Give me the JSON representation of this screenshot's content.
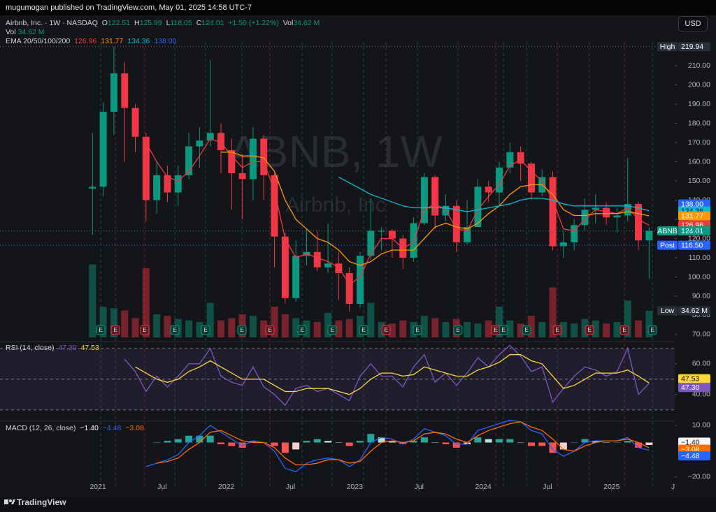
{
  "header": {
    "published": "mugumogan published on TradingView.com, May 01, 2025 14:58 UTC-7"
  },
  "legend": {
    "symbol": "Airbnb, Inc. · 1W · NASDAQ",
    "ohlc": [
      {
        "label": "O",
        "value": "122.51"
      },
      {
        "label": "H",
        "value": "125.99"
      },
      {
        "label": "L",
        "value": "118.05"
      },
      {
        "label": "C",
        "value": "124.01"
      }
    ],
    "change": "+1.50 (+1.22%)",
    "vol_label": "Vol",
    "vol_value": "34.62 M",
    "volume_row_label": "Vol",
    "volume_row_value": "34.62 M",
    "ema_label": "EMA 20/50/100/200",
    "ema_values": [
      "126.96",
      "131.77",
      "134.36",
      "138.00"
    ]
  },
  "currency": "USD",
  "watermark": {
    "symbol": "ABNB, 1W",
    "name": "Airbnb, Inc"
  },
  "event_marker": "E",
  "footer": "TradingView",
  "chart_data": {
    "type": "candlestick",
    "x": [
      "2020-12",
      "2021-01",
      "2021-02",
      "2021-03",
      "2021-04",
      "2021-05",
      "2021-06",
      "2021-07",
      "2021-08",
      "2021-09",
      "2021-10",
      "2021-11",
      "2021-12",
      "2022-01",
      "2022-02",
      "2022-03",
      "2022-04",
      "2022-05",
      "2022-06",
      "2022-07",
      "2022-08",
      "2022-09",
      "2022-10",
      "2022-11",
      "2022-12",
      "2023-01",
      "2023-02",
      "2023-03",
      "2023-04",
      "2023-05",
      "2023-06",
      "2023-07",
      "2023-08",
      "2023-09",
      "2023-10",
      "2023-11",
      "2023-12",
      "2024-01",
      "2024-02",
      "2024-03",
      "2024-04",
      "2024-05",
      "2024-06",
      "2024-07",
      "2024-08",
      "2024-09",
      "2024-10",
      "2024-11",
      "2024-12",
      "2025-01",
      "2025-02",
      "2025-03",
      "2025-04"
    ],
    "ohlc": [
      [
        146,
        175,
        122,
        147
      ],
      [
        147,
        191,
        142,
        186
      ],
      [
        186,
        219.94,
        174,
        206
      ],
      [
        206,
        212,
        160,
        188
      ],
      [
        188,
        190,
        165,
        173
      ],
      [
        173,
        175,
        129,
        140
      ],
      [
        140,
        160,
        133,
        153
      ],
      [
        153,
        158,
        139,
        144
      ],
      [
        144,
        158,
        137,
        153
      ],
      [
        153,
        175,
        151,
        168
      ],
      [
        168,
        178,
        157,
        171
      ],
      [
        171,
        213,
        168,
        175
      ],
      [
        175,
        180,
        154,
        166
      ],
      [
        166,
        172,
        135,
        154
      ],
      [
        154,
        164,
        130,
        151
      ],
      [
        151,
        178,
        140,
        172
      ],
      [
        172,
        174,
        140,
        153
      ],
      [
        153,
        154,
        105,
        121
      ],
      [
        121,
        123,
        86,
        89
      ],
      [
        89,
        119,
        87,
        111
      ],
      [
        111,
        125,
        106,
        113
      ],
      [
        113,
        124,
        103,
        105
      ],
      [
        105,
        128,
        102,
        107
      ],
      [
        107,
        113,
        88,
        102
      ],
      [
        102,
        105,
        82,
        86
      ],
      [
        86,
        113,
        84,
        111
      ],
      [
        111,
        141,
        109,
        124
      ],
      [
        124,
        126,
        114,
        124
      ],
      [
        124,
        125,
        110,
        120
      ],
      [
        120,
        122,
        104,
        110
      ],
      [
        110,
        131,
        108,
        128
      ],
      [
        128,
        154,
        127,
        152
      ],
      [
        152,
        153,
        125,
        132
      ],
      [
        132,
        143,
        129,
        137
      ],
      [
        137,
        140,
        113,
        118
      ],
      [
        118,
        140,
        117,
        126
      ],
      [
        126,
        151,
        126,
        147
      ],
      [
        147,
        150,
        139,
        144
      ],
      [
        144,
        160,
        137,
        157
      ],
      [
        157,
        170,
        154,
        165
      ],
      [
        165,
        168,
        150,
        159
      ],
      [
        159,
        160,
        140,
        144
      ],
      [
        144,
        156,
        142,
        152
      ],
      [
        152,
        155,
        114,
        116
      ],
      [
        116,
        124,
        110,
        118
      ],
      [
        118,
        130,
        114,
        127
      ],
      [
        127,
        141,
        124,
        135
      ],
      [
        135,
        143,
        128,
        136
      ],
      [
        136,
        139,
        127,
        131
      ],
      [
        131,
        136,
        123,
        132
      ],
      [
        132,
        162,
        129,
        138
      ],
      [
        138,
        139,
        114,
        119
      ],
      [
        119,
        126,
        99,
        124.01
      ]
    ],
    "up_color": "#089981",
    "down_color": "#f23645",
    "volume": [
      95,
      40,
      38,
      35,
      25,
      90,
      30,
      28,
      24,
      22,
      20,
      45,
      22,
      25,
      30,
      28,
      22,
      40,
      30,
      25,
      22,
      20,
      32,
      22,
      24,
      28,
      45,
      20,
      18,
      22,
      20,
      28,
      25,
      20,
      24,
      20,
      18,
      22,
      40,
      22,
      18,
      28,
      20,
      65,
      20,
      18,
      24,
      22,
      18,
      20,
      48,
      22,
      34.62
    ],
    "ema_series": [
      {
        "color": "#f23645",
        "values": [
          null,
          null,
          null,
          null,
          null,
          170,
          160,
          152,
          150,
          155,
          163,
          172,
          170,
          163,
          157,
          160,
          160,
          145,
          120,
          110,
          112,
          110,
          108,
          105,
          96,
          100,
          112,
          120,
          120,
          115,
          118,
          135,
          138,
          135,
          125,
          124,
          135,
          142,
          148,
          158,
          161,
          155,
          150,
          140,
          125,
          124,
          130,
          135,
          134,
          133,
          136,
          130,
          126.96
        ]
      },
      {
        "color": "#ff9800",
        "values": [
          null,
          null,
          null,
          null,
          null,
          null,
          null,
          null,
          null,
          null,
          null,
          null,
          165,
          165,
          163,
          163,
          162,
          155,
          140,
          130,
          125,
          120,
          118,
          114,
          108,
          106,
          108,
          112,
          114,
          114,
          114,
          120,
          126,
          128,
          126,
          125,
          128,
          133,
          137,
          143,
          147,
          148,
          148,
          143,
          135,
          132,
          132,
          133,
          133,
          133,
          134,
          133,
          131.77
        ]
      },
      {
        "color": "#00bcd4",
        "values": [
          null,
          null,
          null,
          null,
          null,
          null,
          null,
          null,
          null,
          null,
          null,
          null,
          null,
          null,
          null,
          null,
          null,
          null,
          null,
          null,
          null,
          null,
          null,
          152,
          149,
          146,
          143,
          141,
          139,
          137,
          136,
          136,
          136,
          136,
          135,
          134,
          135,
          136,
          137,
          138,
          140,
          141,
          141,
          140,
          138,
          137,
          137,
          137,
          137,
          137,
          137,
          136,
          134.36
        ]
      }
    ],
    "ylim": [
      67.8,
      222.4
    ],
    "yticks": [
      {
        "value": 70,
        "label": "70.00"
      },
      {
        "value": 80,
        "label": "80.00"
      },
      {
        "value": 90,
        "label": "90.00"
      },
      {
        "value": 100,
        "label": "100.00"
      },
      {
        "value": 110,
        "label": "110.00"
      },
      {
        "value": 120,
        "label": "120.00"
      },
      {
        "value": 130,
        "label": "130.00"
      },
      {
        "value": 140,
        "label": "140.00"
      },
      {
        "value": 150,
        "label": "150.00"
      },
      {
        "value": 160,
        "label": "160.00"
      },
      {
        "value": 170,
        "label": "170.00"
      },
      {
        "value": 180,
        "label": "180.00"
      },
      {
        "value": 190,
        "label": "190.00"
      },
      {
        "value": 200,
        "label": "200.00"
      },
      {
        "value": 210,
        "label": "210.00"
      }
    ],
    "xticks": [
      {
        "value": "2021-01",
        "label": "2021"
      },
      {
        "value": "2021-07",
        "label": "Jul"
      },
      {
        "value": "2022-01",
        "label": "2022"
      },
      {
        "value": "2022-07",
        "label": "Jul"
      },
      {
        "value": "2023-01",
        "label": "2023"
      },
      {
        "value": "2023-07",
        "label": "Jul"
      },
      {
        "value": "2024-01",
        "label": "2024"
      },
      {
        "value": "2024-07",
        "label": "Jul"
      },
      {
        "value": "2025-01",
        "label": "2025"
      },
      {
        "value": "2025-07",
        "label": "Jul"
      }
    ],
    "price_tags": [
      {
        "title": "High",
        "value": 219.94,
        "label": "219.94",
        "color": "#2a2e39"
      },
      {
        "value": 138,
        "label": "138.00",
        "color": "#2962ff"
      },
      {
        "value": 134.36,
        "label": "134.36",
        "color": "#00bcd4"
      },
      {
        "value": 131.77,
        "label": "131.77",
        "color": "#ff9800"
      },
      {
        "value": 126.96,
        "label": "126.96",
        "color": "#f23645"
      },
      {
        "title": "ABNB",
        "value": 124.01,
        "label": "124.01",
        "color": "#089981"
      },
      {
        "title": "Post",
        "value": 116.5,
        "label": "116.50",
        "color": "#2962ff"
      }
    ],
    "volume_tag": {
      "title": "Low",
      "value": 34.62,
      "label": "34.62 M",
      "color": "#2a2e39"
    },
    "rsi": {
      "title": "RSI (14, close)",
      "legend": [
        "47.30",
        "47.53"
      ],
      "values": [
        null,
        null,
        null,
        63,
        55,
        42,
        52,
        45,
        52,
        60,
        60,
        70,
        52,
        48,
        46,
        58,
        45,
        40,
        33,
        44,
        46,
        42,
        44,
        40,
        36,
        52,
        60,
        52,
        52,
        45,
        58,
        66,
        48,
        54,
        46,
        54,
        64,
        58,
        66,
        72,
        65,
        55,
        58,
        35,
        44,
        52,
        58,
        56,
        52,
        55,
        70,
        40,
        47.3
      ],
      "ma": [
        null,
        null,
        null,
        null,
        58,
        54,
        50,
        48,
        50,
        55,
        58,
        62,
        58,
        54,
        50,
        50,
        50,
        46,
        42,
        42,
        44,
        44,
        44,
        42,
        40,
        44,
        50,
        54,
        54,
        52,
        53,
        58,
        56,
        54,
        52,
        52,
        56,
        58,
        61,
        66,
        66,
        62,
        60,
        52,
        44,
        46,
        50,
        54,
        54,
        54,
        56,
        52,
        47.53
      ],
      "color": "#7e57c2",
      "ma_color": "#fdd835",
      "ylim": [
        24,
        72.7
      ],
      "levels": [
        70,
        50,
        30
      ],
      "yticks": [
        {
          "value": 60,
          "label": "60.00"
        },
        {
          "value": 40,
          "label": "40.00"
        }
      ],
      "tags": [
        {
          "value": 47.53,
          "label": "47.53",
          "color": "#fdd835"
        },
        {
          "value": 47.3,
          "label": "47.30",
          "color": "#7e57c2"
        }
      ]
    },
    "macd": {
      "title": "MACD (12, 26, close)",
      "legend": [
        "−1.40",
        "−4.48",
        "−3.08"
      ],
      "macd": [
        null,
        null,
        null,
        null,
        null,
        -14,
        -12,
        -10,
        -7,
        0,
        4,
        10,
        6,
        2,
        -2,
        1,
        0,
        -5,
        -15,
        -17,
        -12,
        -10,
        -9,
        -10,
        -14,
        -10,
        0,
        3,
        2,
        -1,
        2,
        8,
        6,
        4,
        -1,
        -1,
        7,
        9,
        11,
        13,
        12,
        7,
        5,
        -4,
        -8,
        -5,
        0,
        1,
        1,
        1,
        3,
        -3,
        -4.48
      ],
      "signal": [
        null,
        null,
        null,
        null,
        null,
        null,
        -12,
        -11,
        -9,
        -4,
        0,
        6,
        7,
        4,
        1,
        0,
        0,
        -3,
        -9,
        -13,
        -13,
        -12,
        -10,
        -10,
        -12,
        -11,
        -5,
        0,
        1,
        0,
        1,
        5,
        6,
        5,
        2,
        0,
        4,
        7,
        9,
        11,
        12,
        9,
        7,
        2,
        -4,
        -5,
        -2,
        0,
        1,
        1,
        2,
        0,
        -3.08
      ],
      "histogram": [
        null,
        null,
        null,
        null,
        null,
        null,
        0,
        1,
        2,
        4,
        4,
        4,
        -1,
        -2,
        -3,
        1,
        0,
        -2,
        -6,
        -4,
        1,
        2,
        1,
        0,
        -2,
        1,
        5,
        3,
        1,
        -1,
        1,
        3,
        0,
        -1,
        -3,
        -1,
        3,
        2,
        2,
        2,
        0,
        -2,
        -2,
        -6,
        -4,
        0,
        2,
        1,
        0,
        0,
        1,
        -3,
        -1.4
      ],
      "macd_color": "#2962ff",
      "signal_color": "#ff6d00",
      "ylim": [
        -27,
        11.6
      ],
      "yticks": [
        {
          "value": 10,
          "label": "10.00"
        },
        {
          "value": -20,
          "label": "−20.00"
        }
      ],
      "tags": [
        {
          "value": -1.4,
          "label": "−1.40",
          "color": "#f5f5f5"
        },
        {
          "value": -3.08,
          "label": "−3.08",
          "color": "#ff6d00"
        },
        {
          "value": -4.48,
          "label": "−4.48",
          "color": "#2962ff"
        }
      ]
    }
  }
}
